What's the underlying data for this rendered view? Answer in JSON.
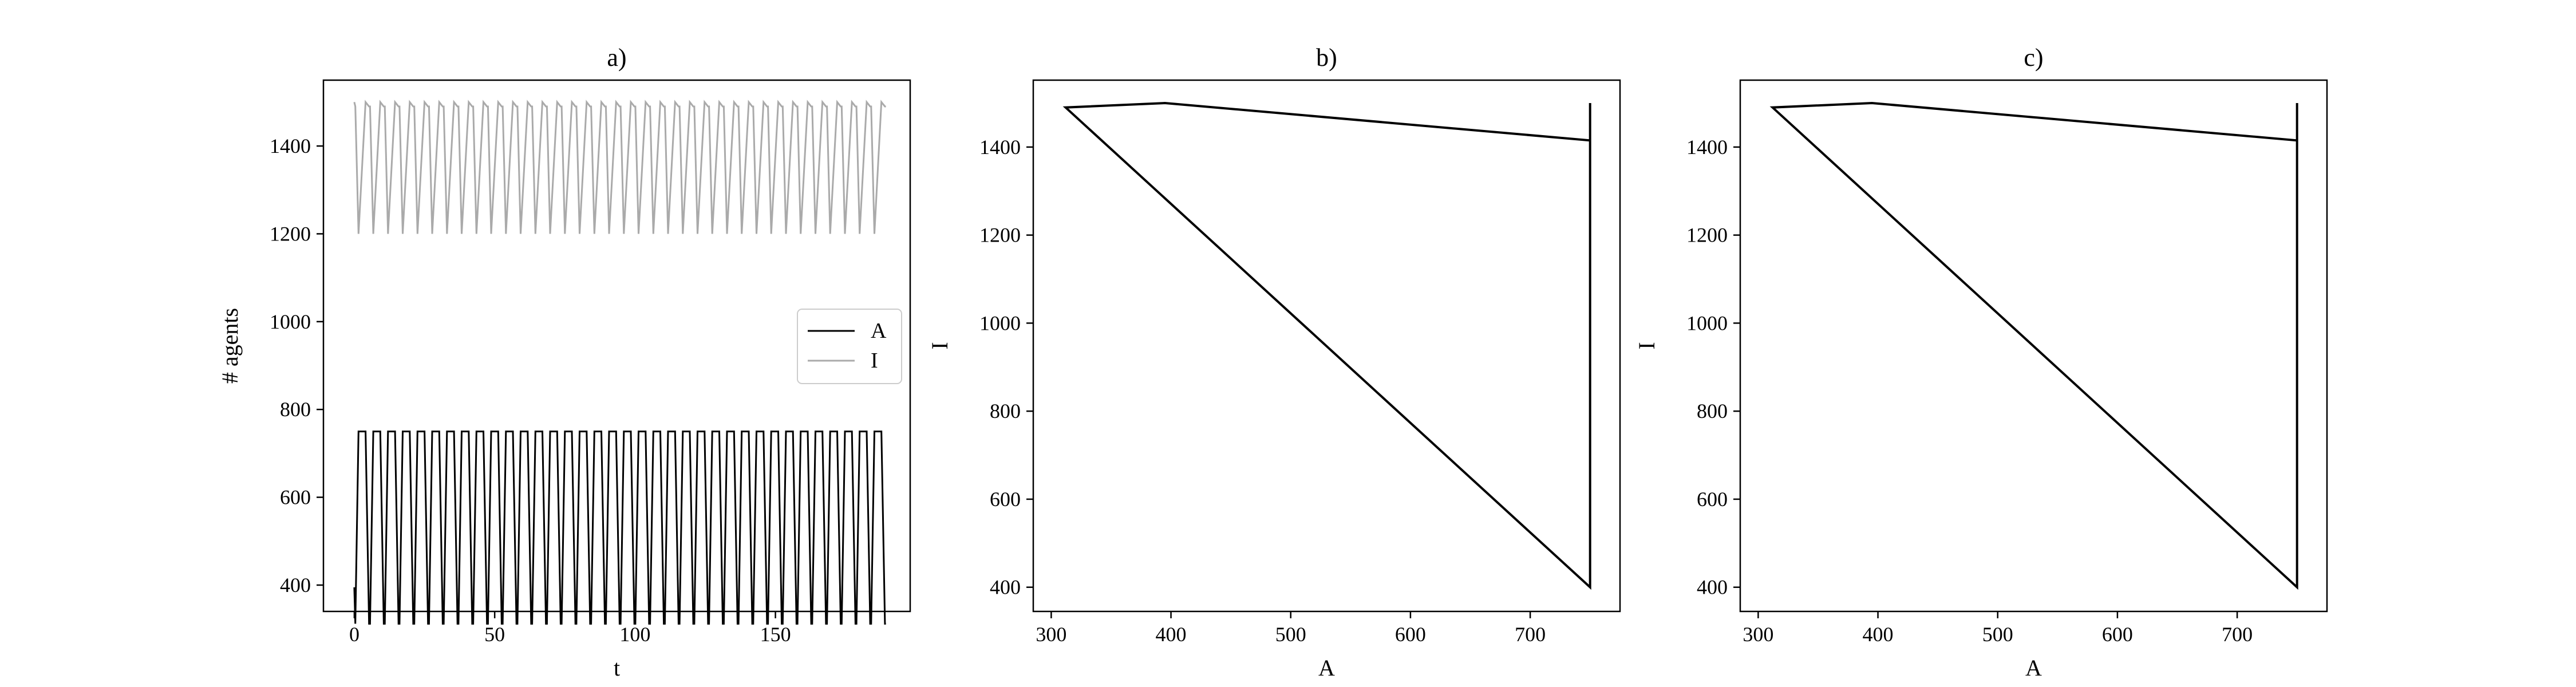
{
  "chart_data": [
    {
      "type": "line",
      "title": "a)",
      "xlabel": "t",
      "ylabel": "# agents",
      "xlim": [
        -11,
        198
      ],
      "ylim": [
        340,
        1550
      ],
      "xticks": [
        0,
        50,
        100,
        150
      ],
      "yticks": [
        400,
        600,
        800,
        1000,
        1200,
        1400
      ],
      "grid": false,
      "legend": "center-right",
      "cycle": {
        "t_start": 0,
        "t_end": 190,
        "period": 5.25
      },
      "series": [
        {
          "name": "A",
          "color": "#000000",
          "cycle_shape": {
            "t": [
              0,
              0.35,
              1.5,
              4.0,
              5.25
            ],
            "values": [
              395,
              312,
              750,
              750,
              312
            ]
          }
        },
        {
          "name": "I",
          "color": "#aaaaaa",
          "cycle_shape": {
            "t": [
              0,
              0.35,
              1.5,
              4.0,
              5.25
            ],
            "values": [
              1500,
              1490,
              1200,
              1500,
              1490
            ]
          }
        }
      ]
    },
    {
      "type": "line",
      "title": "b)",
      "xlabel": "A",
      "ylabel": "I",
      "xlim": [
        285,
        775
      ],
      "ylim": [
        345,
        1552
      ],
      "xticks": [
        300,
        400,
        500,
        600,
        700
      ],
      "yticks": [
        400,
        600,
        800,
        1000,
        1200,
        1400
      ],
      "grid": false,
      "series": [
        {
          "color": "#000000",
          "x": [
            750,
            750,
            312,
            395,
            750,
            750
          ],
          "y": [
            1500,
            400,
            1490,
            1500,
            1415,
            1200
          ]
        }
      ]
    },
    {
      "type": "line",
      "title": "c)",
      "xlabel": "A",
      "ylabel": "I",
      "xlim": [
        285,
        775
      ],
      "ylim": [
        345,
        1552
      ],
      "xticks": [
        300,
        400,
        500,
        600,
        700
      ],
      "yticks": [
        400,
        600,
        800,
        1000,
        1200,
        1400
      ],
      "grid": false,
      "series": [
        {
          "color": "#000000",
          "x": [
            750,
            750,
            312,
            395,
            750,
            750
          ],
          "y": [
            1500,
            400,
            1490,
            1500,
            1415,
            1200
          ]
        }
      ]
    }
  ]
}
